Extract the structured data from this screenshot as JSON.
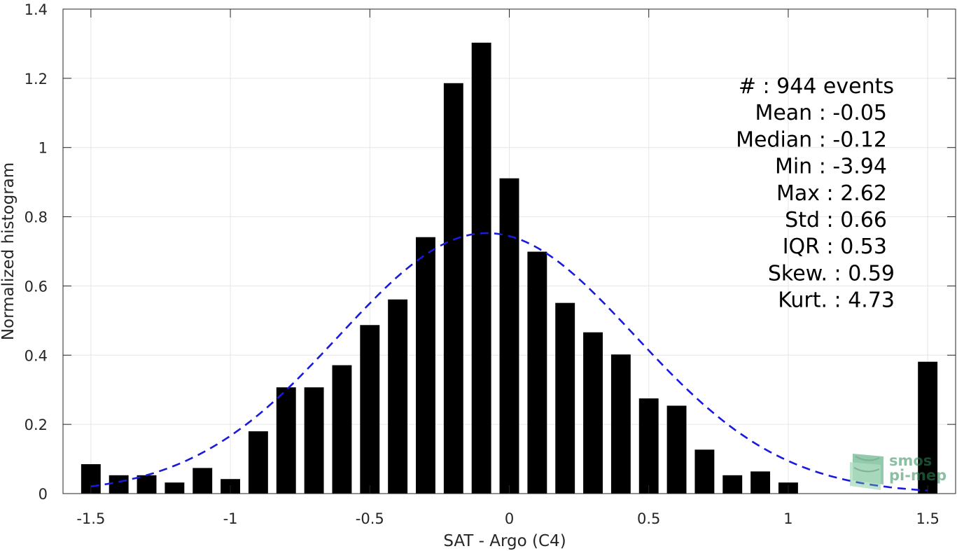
{
  "chart_data": {
    "type": "bar",
    "xlabel": "SAT - Argo (C4)",
    "ylabel": "Normalized histogram",
    "xlim": [
      -1.6,
      1.6
    ],
    "ylim": [
      0,
      1.4
    ],
    "x_ticks": [
      "-1.5",
      "-1",
      "-0.5",
      "0",
      "0.5",
      "1",
      "1.5"
    ],
    "x_tick_values": [
      -1.5,
      -1,
      -0.5,
      0,
      0.5,
      1,
      1.5
    ],
    "y_ticks": [
      "0",
      "0.2",
      "0.4",
      "0.6",
      "0.8",
      "1",
      "1.2",
      "1.4"
    ],
    "y_tick_values": [
      0,
      0.2,
      0.4,
      0.6,
      0.8,
      1,
      1.2,
      1.4
    ],
    "grid": true,
    "bar_color": "#000000",
    "bars": {
      "x": [
        -1.5,
        -1.4,
        -1.3,
        -1.2,
        -1.1,
        -1.0,
        -0.9,
        -0.8,
        -0.7,
        -0.6,
        -0.5,
        -0.4,
        -0.3,
        -0.2,
        -0.1,
        0.0,
        0.1,
        0.2,
        0.3,
        0.4,
        0.5,
        0.6,
        0.7,
        0.8,
        0.9,
        1.0,
        1.1,
        1.2,
        1.3,
        1.4,
        1.5
      ],
      "values": [
        0.085,
        0.053,
        0.053,
        0.032,
        0.074,
        0.042,
        0.18,
        0.307,
        0.307,
        0.371,
        0.487,
        0.561,
        0.741,
        1.186,
        1.303,
        0.911,
        0.699,
        0.551,
        0.466,
        0.402,
        0.275,
        0.254,
        0.127,
        0.053,
        0.064,
        0.032,
        0,
        0,
        0,
        0,
        0.381
      ]
    },
    "fit_curve": {
      "style": "dashed",
      "color": "#1a1adb",
      "mean": -0.08,
      "std": 0.53,
      "x_range": [
        -1.5,
        1.5
      ]
    },
    "stats_box": {
      "lines": [
        "#  : 944 events",
        "Mean : -0.05",
        "Median : -0.12",
        "Min : -3.94",
        "Max : 2.62",
        "Std : 0.66",
        "IQR : 0.53",
        "Skew. : 0.59",
        "Kurt. : 4.73"
      ]
    }
  },
  "watermark": {
    "line1": "smos",
    "line2": "pi-mep",
    "color": "#2e8b57"
  }
}
